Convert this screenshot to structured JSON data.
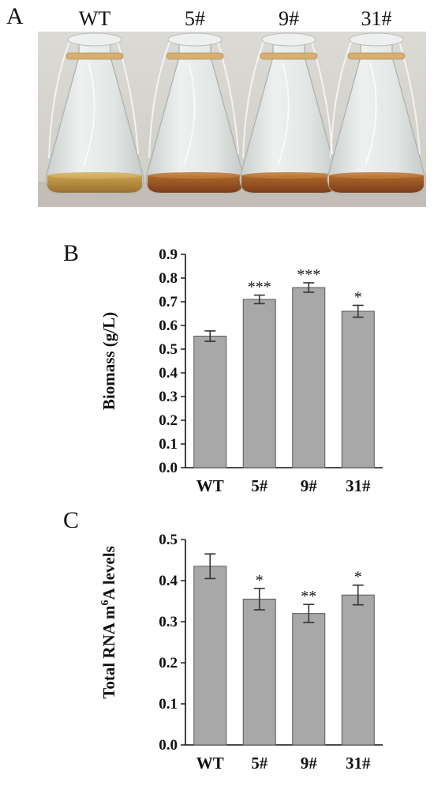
{
  "panel_labels": [
    "A",
    "B",
    "C"
  ],
  "photo": {
    "labels": [
      "WT",
      "5#",
      "9#",
      "31#"
    ],
    "colors": {
      "background": "#d9d7d2",
      "glass": "#e7ebe9",
      "rubber_band": "#d6b073",
      "liquid_light": "#b48a3c",
      "liquid_dark": "#8a4a20"
    }
  },
  "chart_data": [
    {
      "type": "bar",
      "categories": [
        "WT",
        "5#",
        "9#",
        "31#"
      ],
      "values": [
        0.555,
        0.71,
        0.76,
        0.66
      ],
      "errors": [
        0.022,
        0.018,
        0.02,
        0.025
      ],
      "significance": [
        "",
        "***",
        "***",
        "*"
      ],
      "ylabel": "Biomass (g/L)",
      "ylim": [
        0,
        0.9
      ],
      "yticks": [
        "0.0",
        "0.1",
        "0.2",
        "0.3",
        "0.4",
        "0.5",
        "0.6",
        "0.7",
        "0.8",
        "0.9"
      ],
      "bar_color": "#a8a8a8",
      "grid": false
    },
    {
      "type": "bar",
      "categories": [
        "WT",
        "5#",
        "9#",
        "31#"
      ],
      "values": [
        0.435,
        0.355,
        0.32,
        0.365
      ],
      "errors": [
        0.03,
        0.026,
        0.022,
        0.024
      ],
      "significance": [
        "",
        "*",
        "**",
        "*"
      ],
      "ylabel_parts": [
        "Total RNA m",
        "6",
        "A levels"
      ],
      "ylim": [
        0,
        0.5
      ],
      "yticks": [
        "0.0",
        "0.1",
        "0.2",
        "0.3",
        "0.4",
        "0.5"
      ],
      "bar_color": "#a8a8a8",
      "grid": false
    }
  ]
}
